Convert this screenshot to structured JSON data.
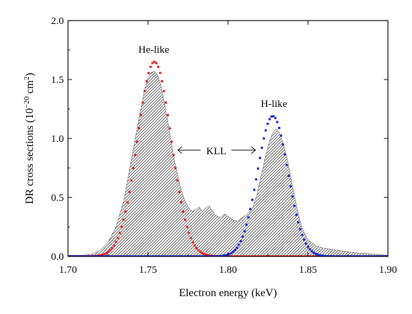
{
  "chart_data": {
    "type": "area",
    "xlabel": "Electron energy (keV)",
    "ylabel_main": "DR cross sections (10",
    "ylabel_exp1": "−20",
    "ylabel_mid": " cm",
    "ylabel_exp2": "2",
    "ylabel_end": ")",
    "xlim": [
      1.7,
      1.9
    ],
    "ylim": [
      0.0,
      2.0
    ],
    "xticks": [
      "1.70",
      "1.75",
      "1.80",
      "1.85",
      "1.90"
    ],
    "yticks": [
      "0.0",
      "0.5",
      "1.0",
      "1.5",
      "2.0"
    ],
    "annotations": {
      "he_label": "He-like",
      "h_label": "H-like",
      "kll_label": "KLL"
    },
    "colors": {
      "he_series": "#e0201a",
      "h_series": "#1a22d8",
      "shaded": "#555555"
    },
    "shaded_profile": {
      "x": [
        1.7,
        1.705,
        1.71,
        1.715,
        1.72,
        1.725,
        1.73,
        1.735,
        1.74,
        1.745,
        1.748,
        1.75,
        1.752,
        1.754,
        1.756,
        1.758,
        1.76,
        1.763,
        1.766,
        1.77,
        1.773,
        1.776,
        1.778,
        1.78,
        1.782,
        1.784,
        1.786,
        1.788,
        1.79,
        1.792,
        1.795,
        1.798,
        1.8,
        1.803,
        1.806,
        1.809,
        1.812,
        1.815,
        1.818,
        1.821,
        1.824,
        1.826,
        1.828,
        1.83,
        1.832,
        1.834,
        1.837,
        1.84,
        1.843,
        1.846,
        1.85,
        1.855,
        1.86,
        1.865,
        1.87,
        1.88,
        1.89,
        1.9
      ],
      "y": [
        0.01,
        0.01,
        0.01,
        0.02,
        0.05,
        0.12,
        0.25,
        0.48,
        0.85,
        1.22,
        1.42,
        1.52,
        1.56,
        1.57,
        1.54,
        1.46,
        1.32,
        1.1,
        0.85,
        0.6,
        0.47,
        0.4,
        0.38,
        0.4,
        0.42,
        0.38,
        0.41,
        0.43,
        0.39,
        0.35,
        0.33,
        0.36,
        0.34,
        0.31,
        0.3,
        0.33,
        0.36,
        0.4,
        0.52,
        0.7,
        0.88,
        0.98,
        1.05,
        1.08,
        1.05,
        0.98,
        0.83,
        0.62,
        0.42,
        0.25,
        0.14,
        0.09,
        0.07,
        0.06,
        0.05,
        0.03,
        0.02,
        0.01
      ]
    },
    "series": [
      {
        "peak": 1.754,
        "amplitude": 1.65,
        "width": 0.0105
      },
      {
        "peak": 1.828,
        "amplitude": 1.19,
        "width": 0.0095
      }
    ]
  }
}
